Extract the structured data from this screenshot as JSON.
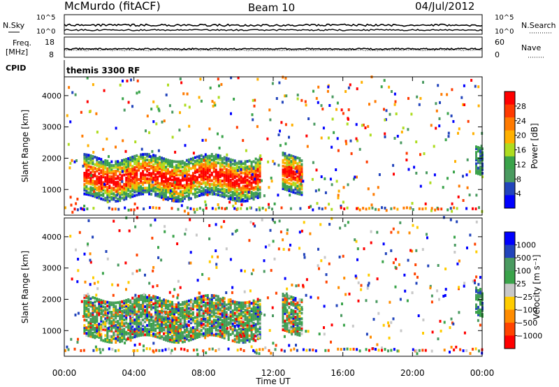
{
  "header": {
    "station": "McMurdo (fitACF)",
    "beam": "Beam 10",
    "date": "04/Jul/2012"
  },
  "nsky_panel": {
    "left_label": "N.Sky",
    "right_label": "N.Search",
    "ticks": [
      "10^5",
      "10^0"
    ]
  },
  "freq_panel": {
    "left_label_line1": "Freq.",
    "left_label_line2": "[MHz]",
    "right_label": "Nave",
    "left_ticks": [
      "8",
      "18"
    ],
    "right_ticks": [
      "60",
      "0"
    ]
  },
  "cpid_panel": {
    "label": "CPID",
    "program": "themis 3300 RF"
  },
  "colors": {
    "power": [
      "#0000ff",
      "#2244bb",
      "#4a9a60",
      "#3aa34a",
      "#aedc20",
      "#ffb000",
      "#ff7a00",
      "#ff3a00",
      "#ff0000"
    ],
    "velocity": [
      "#0000ff",
      "#2244bb",
      "#4a9a60",
      "#3aa34a",
      "#c8c8c8",
      "#ffcc00",
      "#ff8c00",
      "#ff4400",
      "#ff0000"
    ]
  },
  "chart_data": [
    {
      "type": "heatmap",
      "name": "power-panel",
      "ylabel": "Slant Range [km]",
      "ylim": [
        180,
        4600
      ],
      "y_ticks": [
        1000,
        2000,
        3000,
        4000
      ],
      "x_ticks": [
        0,
        4,
        8,
        12,
        16,
        20,
        24
      ],
      "colorbar": {
        "label": "Power [dB]",
        "ticks": [
          "28",
          "24",
          "20",
          "16",
          "12",
          "8",
          "4"
        ]
      },
      "echo_regions": [
        {
          "t0": 1.1,
          "t1": 11.2,
          "r0": 700,
          "r1": 2000,
          "level": "high"
        },
        {
          "t0": 12.5,
          "t1": 13.6,
          "r0": 900,
          "r1": 2100,
          "level": "high"
        },
        {
          "t0": 23.6,
          "t1": 24.0,
          "r0": 1400,
          "r1": 2300,
          "level": "low"
        }
      ]
    },
    {
      "type": "heatmap",
      "name": "velocity-panel",
      "ylabel": "Slant Range [km]",
      "ylim": [
        180,
        4600
      ],
      "y_ticks": [
        1000,
        2000,
        3000,
        4000
      ],
      "x_ticks": [
        0,
        4,
        8,
        12,
        16,
        20,
        24
      ],
      "colorbar": {
        "label": "Velocity [m s⁻¹]",
        "ticks": [
          "1000",
          "500",
          "100",
          "25",
          "−25",
          "−100",
          "−500",
          "−1000"
        ]
      },
      "echo_regions": [
        {
          "t0": 1.1,
          "t1": 11.2,
          "r0": 700,
          "r1": 2000,
          "level": "mixed"
        },
        {
          "t0": 12.5,
          "t1": 13.6,
          "r0": 900,
          "r1": 2100,
          "level": "mixed"
        },
        {
          "t0": 23.6,
          "t1": 24.0,
          "r0": 1400,
          "r1": 2300,
          "level": "low"
        }
      ]
    }
  ],
  "x_axis": {
    "label": "Time UT",
    "tick_labels": [
      "00:00",
      "04:00",
      "08:00",
      "12:00",
      "16:00",
      "20:00",
      "00:00"
    ]
  }
}
